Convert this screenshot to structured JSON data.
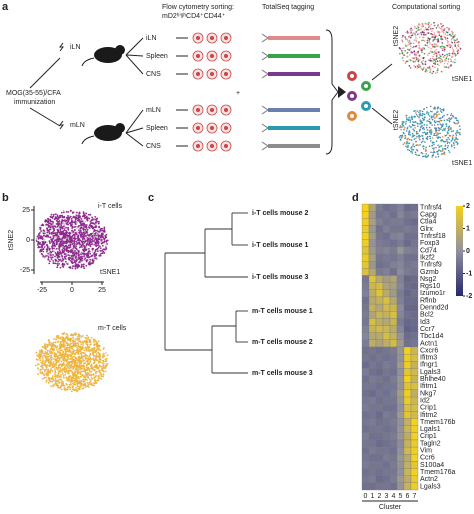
{
  "panel_a": {
    "label": "a",
    "immunization": [
      "MOG(35-55)/CFA",
      "immunization"
    ],
    "sites": [
      "iLN",
      "mLN"
    ],
    "flow_title": [
      "Flow cytometry sorting:",
      "mD2ʰⁱᵍʰCD4⁺CD44⁺"
    ],
    "tissues": [
      "iLN",
      "Spleen",
      "CNS",
      "mLN",
      "Spleen",
      "CNS"
    ],
    "tagging_title": "TotalSeq tagging",
    "plus": "+",
    "comp_title": "Computational sorting",
    "axis_y": "tSNE2",
    "axis_x": "tSNE1"
  },
  "panel_b": {
    "label": "b",
    "plots": [
      {
        "title": "i-T cells",
        "color": "#8e2a8e"
      },
      {
        "title": "m-T cells",
        "color": "#f0b43a"
      }
    ],
    "y_label": "tSNE2",
    "x_label": "tSNE1",
    "yticks": [
      25,
      0,
      -25
    ],
    "xticks": [
      -25,
      0,
      25
    ]
  },
  "panel_c": {
    "label": "c",
    "leaves": [
      {
        "text": "i-T cells mouse 2",
        "color": "#8e2a8e"
      },
      {
        "text": "i-T cells mouse 1",
        "color": "#8e2a8e"
      },
      {
        "text": "i-T cells mouse 3",
        "color": "#8e2a8e"
      },
      {
        "text": "m-T cells mouse 1",
        "color": "#f0b43a"
      },
      {
        "text": "m-T cells mouse 2",
        "color": "#f0b43a"
      },
      {
        "text": "m-T cells mouse 3",
        "color": "#f0b43a"
      }
    ]
  },
  "panel_d": {
    "label": "d",
    "genes": [
      "Tnfrsf4",
      "Capg",
      "Ctla4",
      "Glrx",
      "Tnfrsf18",
      "Foxp3",
      "Cd74",
      "Ikzf2",
      "Tnfrsf9",
      "Gzmb",
      "Nsg2",
      "Rgs10",
      "Izumo1r",
      "Rflnb",
      "Dennd2d",
      "Bcl2",
      "Id3",
      "Ccr7",
      "Tbc1d4",
      "Actn1",
      "Cxcr6",
      "Ifitm3",
      "Ifngr1",
      "Lgals3",
      "Bhlhe40",
      "Ifitm1",
      "Nkg7",
      "Id2",
      "Crip1",
      "Ifitm2",
      "Tmem176b",
      "Lgals1",
      "Crip1",
      "Tagln2",
      "Vim",
      "Ccr6",
      "S100a4",
      "Tmem176a",
      "Actn2",
      "Lgals3"
    ],
    "clusters": [
      0,
      1,
      2,
      3,
      4,
      5,
      6,
      7
    ],
    "cluster_label": "Cluster",
    "colorbar_range": [
      -2,
      2
    ],
    "colorbar_ticks": [
      2,
      1,
      0,
      -1,
      -2
    ],
    "values": [
      [
        2,
        0.6,
        -0.4,
        -0.6,
        -0.5,
        -0.3,
        -0.7,
        -0.6
      ],
      [
        2,
        0.3,
        -0.5,
        -0.4,
        -0.6,
        -0.2,
        -0.5,
        -0.4
      ],
      [
        1.9,
        0.5,
        -0.3,
        -0.5,
        -0.4,
        -0.4,
        -0.6,
        -0.7
      ],
      [
        1.8,
        0.2,
        -0.6,
        -0.3,
        -0.5,
        -0.5,
        -0.4,
        -0.5
      ],
      [
        2,
        0.4,
        -0.5,
        -0.6,
        -0.3,
        -0.2,
        -0.6,
        -0.6
      ],
      [
        1.9,
        0.1,
        -0.4,
        -0.5,
        -0.6,
        -0.4,
        -0.7,
        -0.5
      ],
      [
        1.6,
        0.3,
        -0.3,
        -0.2,
        -0.4,
        0.2,
        -0.3,
        -0.4
      ],
      [
        1.8,
        0.5,
        -0.5,
        -0.4,
        -0.5,
        -0.3,
        -0.6,
        -0.6
      ],
      [
        1.7,
        0.2,
        -0.6,
        -0.5,
        -0.3,
        -0.2,
        -0.5,
        -0.4
      ],
      [
        1.5,
        0.7,
        -0.4,
        -0.3,
        -0.6,
        -0.1,
        -0.4,
        -0.5
      ],
      [
        -0.5,
        1.6,
        0.8,
        0.4,
        0.6,
        -0.3,
        -0.8,
        -0.7
      ],
      [
        -0.4,
        1.2,
        1.4,
        0.6,
        0.5,
        -0.2,
        -0.7,
        -0.8
      ],
      [
        -0.3,
        0.9,
        1.6,
        0.8,
        0.3,
        -0.4,
        -0.8,
        -0.6
      ],
      [
        -0.6,
        0.8,
        1.1,
        1.5,
        0.7,
        -0.3,
        -0.7,
        -0.7
      ],
      [
        -0.5,
        1,
        0.7,
        1.3,
        1.2,
        -0.1,
        -0.8,
        -0.8
      ],
      [
        -0.4,
        0.6,
        1.2,
        1,
        1.5,
        -0.2,
        -0.6,
        -0.7
      ],
      [
        -0.5,
        1.4,
        0.9,
        0.7,
        1.1,
        -0.4,
        -0.8,
        -0.7
      ],
      [
        -0.3,
        1.1,
        1.3,
        1.2,
        0.8,
        -0.2,
        -0.9,
        -0.8
      ],
      [
        -0.2,
        0.7,
        0.8,
        1.4,
        1,
        0.1,
        -0.7,
        -0.6
      ],
      [
        -0.4,
        0.9,
        0.6,
        0.9,
        1.3,
        0.3,
        -0.6,
        -0.5
      ],
      [
        -0.6,
        -0.5,
        -0.6,
        -0.5,
        -0.4,
        0.2,
        2,
        1.2
      ],
      [
        -0.5,
        -0.6,
        -0.5,
        -0.6,
        -0.5,
        0.1,
        1.8,
        1.4
      ],
      [
        -0.7,
        -0.5,
        -0.6,
        -0.4,
        -0.5,
        0.3,
        1.9,
        1
      ],
      [
        -0.4,
        -0.6,
        -0.7,
        -0.5,
        -0.6,
        0,
        1.7,
        1.3
      ],
      [
        -0.6,
        -0.4,
        -0.5,
        -0.6,
        -0.4,
        0.2,
        2,
        1.1
      ],
      [
        -0.5,
        -0.5,
        -0.6,
        -0.5,
        -0.5,
        0.1,
        1.6,
        1.5
      ],
      [
        -0.6,
        -0.7,
        -0.5,
        -0.6,
        -0.4,
        0.4,
        1.9,
        0.9
      ],
      [
        -0.5,
        -0.4,
        -0.6,
        -0.5,
        -0.5,
        0.2,
        1.8,
        1.2
      ],
      [
        -0.4,
        -0.5,
        -0.5,
        -0.6,
        -0.6,
        0,
        1.5,
        1.4
      ],
      [
        -0.6,
        -0.5,
        -0.7,
        -0.4,
        -0.5,
        0.3,
        1.7,
        1.3
      ],
      [
        -0.5,
        -0.4,
        -0.6,
        -0.5,
        -0.4,
        0,
        1,
        2
      ],
      [
        -0.6,
        -0.5,
        -0.5,
        -0.6,
        -0.5,
        0.1,
        1.2,
        1.9
      ],
      [
        -0.4,
        -0.6,
        -0.6,
        -0.5,
        -0.4,
        0.2,
        0.9,
        2
      ],
      [
        -0.5,
        -0.5,
        -0.7,
        -0.6,
        -0.5,
        -0.1,
        1.1,
        1.8
      ],
      [
        -0.6,
        -0.4,
        -0.5,
        -0.5,
        -0.6,
        0,
        1.3,
        1.9
      ],
      [
        -0.5,
        -0.6,
        -0.6,
        -0.4,
        -0.5,
        0.2,
        0.8,
        2
      ],
      [
        -0.4,
        -0.5,
        -0.5,
        -0.6,
        -0.4,
        0.1,
        1,
        1.7
      ],
      [
        -0.6,
        -0.5,
        -0.6,
        -0.5,
        -0.5,
        0,
        1.2,
        2
      ],
      [
        -0.5,
        -0.4,
        -0.7,
        -0.6,
        -0.4,
        0.3,
        0.9,
        1.8
      ],
      [
        -0.6,
        -0.6,
        -0.5,
        -0.5,
        -0.6,
        0.1,
        1.1,
        1.9
      ]
    ]
  }
}
